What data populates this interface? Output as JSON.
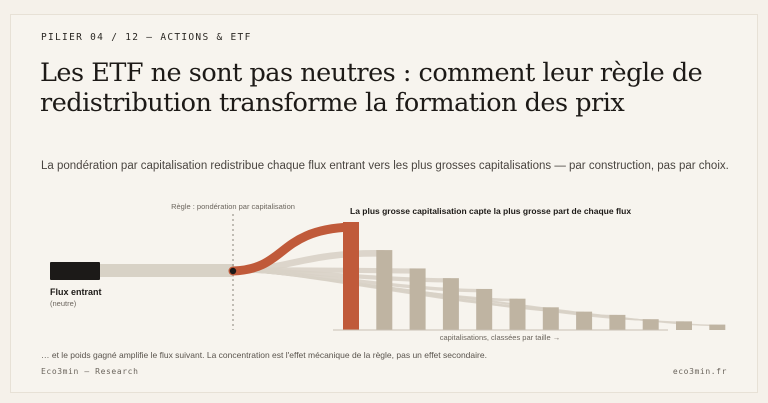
{
  "header": {
    "kicker": "PILIER 04 / 12 — ACTIONS & ETF",
    "title": "Les ETF ne sont pas neutres : comment leur règle de redistribution transforme la formation des prix",
    "lead": "La pondération par capitalisation redistribue chaque flux entrant vers les plus grosses capitalisations — par construction, pas par choix."
  },
  "diagram": {
    "rule_label": "Règle : pondération par capitalisation",
    "highlight_label": "La plus grosse capitalisation capte la plus grosse part de chaque flux",
    "input_label": "Flux entrant",
    "input_sublabel": "(neutre)",
    "axis_label": "capitalisations, classées par taille →",
    "bar_shares": [
      1.0,
      0.74,
      0.57,
      0.48,
      0.38,
      0.29,
      0.21,
      0.17,
      0.14,
      0.1,
      0.08,
      0.05
    ],
    "colors": {
      "accent": "#c05a3a",
      "bar": "#bfb4a2",
      "flow": "#d8d2c6",
      "input": "#1c1a18"
    }
  },
  "footnote": "… et le poids gagné amplifie le flux suivant. La concentration est l'effet mécanique de la règle, pas un effet secondaire.",
  "footer": {
    "left": "Eco3min — Research",
    "right": "eco3min.fr"
  }
}
